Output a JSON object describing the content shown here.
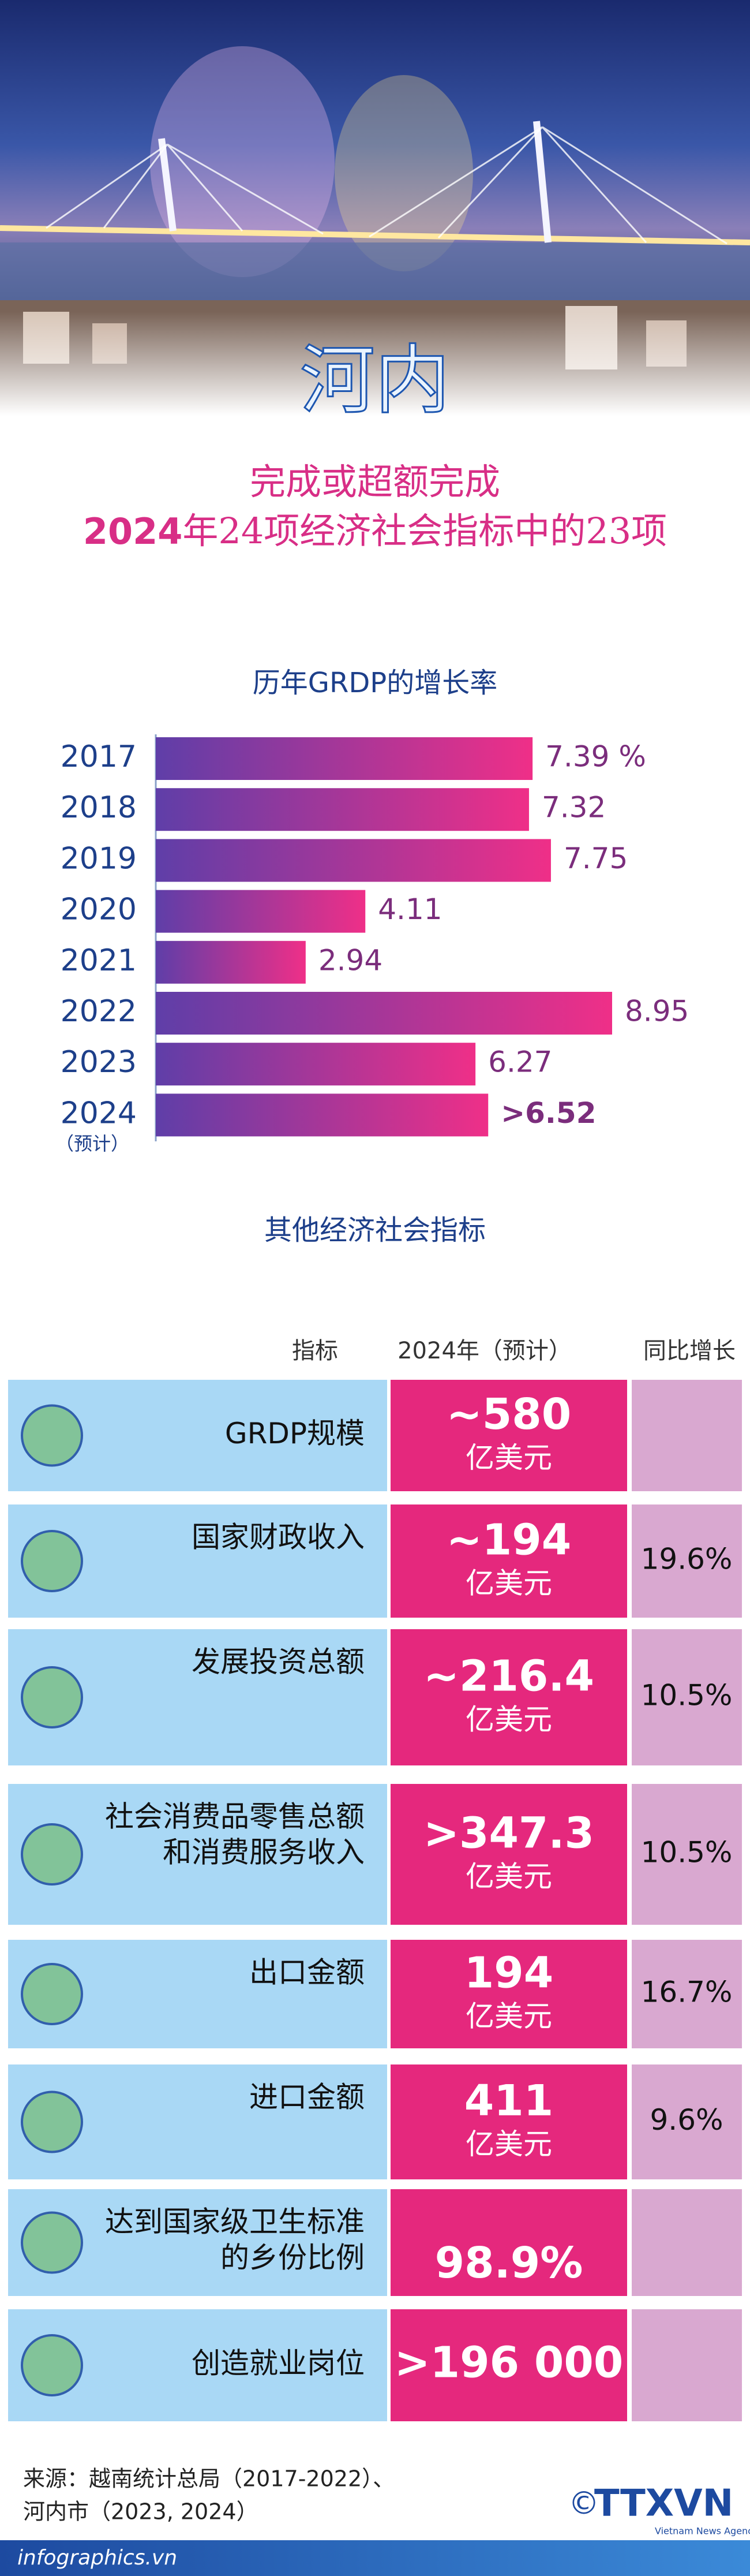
{
  "header": {
    "city": "河内",
    "subtitle_line1": "完成或超额完成",
    "subtitle_year": "2024",
    "subtitle_rest": "年24项经济社会指标中的23项"
  },
  "chart_data": {
    "type": "barh",
    "title": "历年GRDP的增长率",
    "categories": [
      "2017",
      "2018",
      "2019",
      "2020",
      "2021",
      "2022",
      "2023",
      "2024"
    ],
    "estimate_note": "（预计）",
    "values": [
      7.39,
      7.32,
      7.75,
      4.11,
      2.94,
      8.95,
      6.27,
      6.52
    ],
    "value_labels": [
      "7.39 %",
      "7.32",
      "7.75",
      "4.11",
      "2.94",
      "8.95",
      "6.27",
      ">6.52"
    ],
    "colors": [
      "#5f3ea8",
      "#ef2f88"
    ]
  },
  "table": {
    "title": "其他经济社会指标",
    "columns": [
      "指标",
      "2024年（预计）",
      "同比增长"
    ],
    "colors": {
      "indicator": "#a9d8f5",
      "value": "#e5287d",
      "growth": "#d9a8d0"
    },
    "rows": [
      {
        "indicator": [
          "GRDP规模"
        ],
        "value": "~580",
        "unit": "亿美元"
      },
      {
        "indicator": [
          "国家财政收入"
        ],
        "value": "~194",
        "unit": "亿美元",
        "growth": "19.6%"
      },
      {
        "indicator": [
          "发展投资总额"
        ],
        "value": "~216.4",
        "unit": "亿美元",
        "growth": "10.5%"
      },
      {
        "indicator": [
          "社会消费品零售总额",
          "和消费服务收入"
        ],
        "value": ">347.3",
        "unit": "亿美元",
        "growth": "10.5%"
      },
      {
        "indicator": [
          "出口金额"
        ],
        "value": "194",
        "unit": "亿美元",
        "growth": "16.7%"
      },
      {
        "indicator": [
          "进口金额"
        ],
        "value": "411",
        "unit": "亿美元",
        "growth": "9.6%"
      },
      {
        "indicator": [
          "达到国家级卫生标准",
          "的乡份比例"
        ],
        "value": "98.9%"
      },
      {
        "indicator": [
          "创造就业岗位"
        ],
        "value": ">196 000"
      }
    ]
  },
  "footer": {
    "source_line1": "来源：越南统计总局（2017-2022）、",
    "source_line2": "河内市（2023, 2024）",
    "site": "infographics.vn",
    "copyright": "©",
    "agency": "TTXVN",
    "agency_en": "Vietnam News Agency"
  }
}
